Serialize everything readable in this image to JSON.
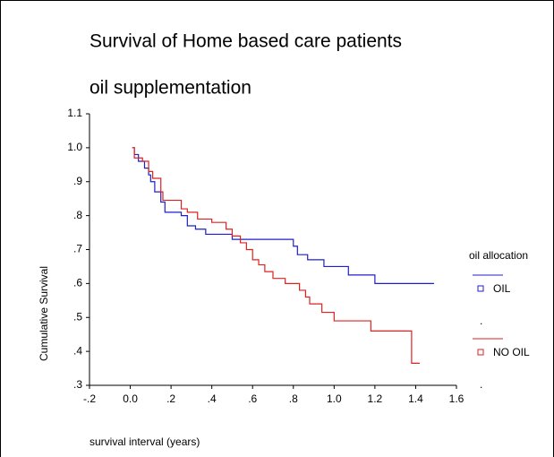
{
  "chart_data": {
    "type": "step",
    "title": "Survival of Home based care patients",
    "subtitle": "oil supplementation",
    "x_label": "survival interval (years)",
    "y_label": "Cumulative Survival",
    "legend_title": "oil allocation",
    "legend_marks": [
      ".",
      "."
    ],
    "xlim": [
      -0.2,
      1.6
    ],
    "ylim": [
      0.3,
      1.1
    ],
    "xticks": [
      {
        "value": -0.2,
        "label": "-.2"
      },
      {
        "value": 0,
        "label": "0.0"
      },
      {
        "value": 0.2,
        "label": ".2"
      },
      {
        "value": 0.4,
        "label": ".4"
      },
      {
        "value": 0.6,
        "label": ".6"
      },
      {
        "value": 0.8,
        "label": ".8"
      },
      {
        "value": 1,
        "label": "1.0"
      },
      1.2,
      1.4,
      1.6
    ],
    "yticks": [
      {
        "value": 0.3,
        "label": ".3"
      },
      {
        "value": 0.4,
        "label": ".4"
      },
      {
        "value": 0.5,
        "label": ".5"
      },
      {
        "value": 0.6,
        "label": ".6"
      },
      {
        "value": 0.7,
        "label": ".7"
      },
      {
        "value": 0.8,
        "label": ".8"
      },
      {
        "value": 0.9,
        "label": ".9"
      },
      {
        "value": 1,
        "label": "1.0"
      },
      1.1
    ],
    "series": [
      {
        "name": "OIL",
        "color": "#1f1fcc",
        "x": [
          0.01,
          0.02,
          0.04,
          0.07,
          0.09,
          0.1,
          0.12,
          0.15,
          0.17,
          0.25,
          0.28,
          0.32,
          0.37,
          0.5,
          0.8,
          0.82,
          0.87,
          0.95,
          1.07,
          1.2,
          1.49
        ],
        "values": [
          1.0,
          0.98,
          0.96,
          0.94,
          0.92,
          0.9,
          0.87,
          0.84,
          0.81,
          0.8,
          0.77,
          0.76,
          0.745,
          0.73,
          0.71,
          0.685,
          0.67,
          0.65,
          0.625,
          0.6,
          0.6
        ]
      },
      {
        "name": "NO OIL",
        "color": "#dd2222",
        "x": [
          0.01,
          0.02,
          0.06,
          0.09,
          0.11,
          0.15,
          0.16,
          0.25,
          0.28,
          0.33,
          0.4,
          0.47,
          0.5,
          0.54,
          0.57,
          0.6,
          0.63,
          0.66,
          0.7,
          0.76,
          0.83,
          0.86,
          0.88,
          0.94,
          1.0,
          1.18,
          1.38,
          1.42
        ],
        "values": [
          1.0,
          0.97,
          0.96,
          0.93,
          0.91,
          0.87,
          0.845,
          0.82,
          0.81,
          0.79,
          0.78,
          0.76,
          0.74,
          0.72,
          0.7,
          0.67,
          0.655,
          0.635,
          0.615,
          0.6,
          0.58,
          0.56,
          0.54,
          0.515,
          0.49,
          0.46,
          0.365,
          0.365
        ]
      }
    ]
  }
}
